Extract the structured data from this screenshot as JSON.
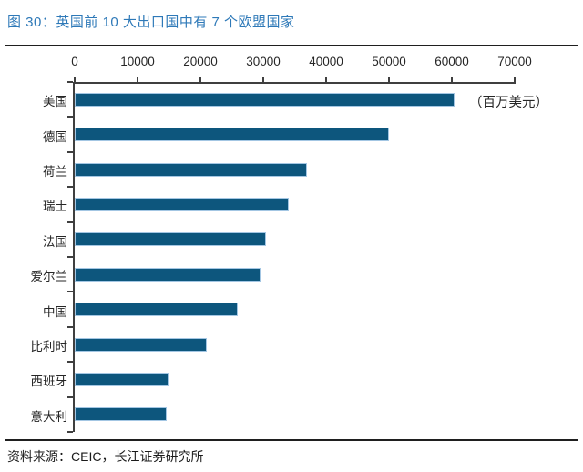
{
  "title": "图 30：英国前 10 大出口国中有 7 个欧盟国家",
  "unit_label": "（百万美元）",
  "source": "资料来源：CEIC，长江证券研究所",
  "colors": {
    "bar_fill": "#0D567D",
    "bar_border": "#A3C6E3",
    "title_text": "#2E79B8",
    "axis": "#3f3f3f",
    "text": "#262626",
    "rule": "#1f1f1f",
    "background": "#ffffff"
  },
  "chart_data": {
    "type": "bar",
    "orientation": "horizontal",
    "title": "图 30：英国前 10 大出口国中有 7 个欧盟国家",
    "unit": "百万美元",
    "categories": [
      "美国",
      "德国",
      "荷兰",
      "瑞士",
      "法国",
      "爱尔兰",
      "中国",
      "比利时",
      "西班牙",
      "意大利"
    ],
    "values": [
      60500,
      50000,
      37000,
      34000,
      30500,
      29500,
      26000,
      21000,
      14900,
      14600
    ],
    "xlim": [
      0,
      70000
    ],
    "x_ticks": [
      0,
      10000,
      20000,
      30000,
      40000,
      50000,
      60000,
      70000
    ],
    "xlabel": "",
    "ylabel": "",
    "grid": false,
    "x_axis_position": "top",
    "legend": "none"
  }
}
